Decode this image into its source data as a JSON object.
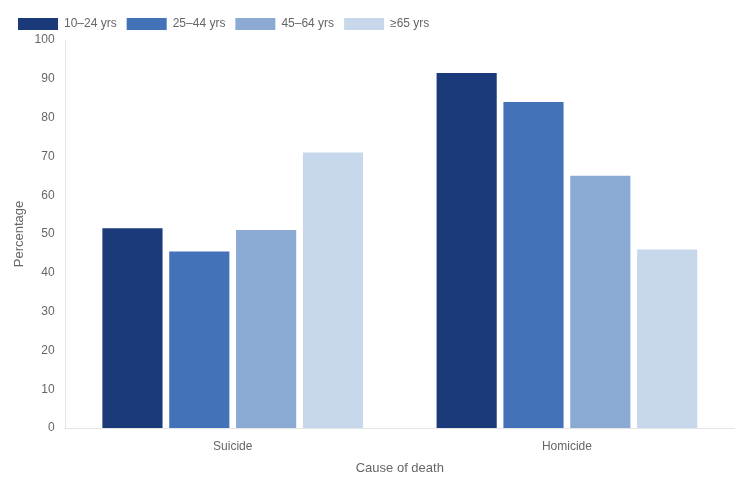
{
  "chart_data": {
    "type": "bar",
    "xlabel": "Cause of death",
    "ylabel": "Percentage",
    "categories": [
      "Suicide",
      "Homicide"
    ],
    "series": [
      {
        "name": "10–24 yrs",
        "color": "#1a3a7a",
        "values": [
          51.5,
          91.5
        ]
      },
      {
        "name": "25–44 yrs",
        "color": "#4472b8",
        "values": [
          45.5,
          84.0
        ]
      },
      {
        "name": "45–64 yrs",
        "color": "#8aaad4",
        "values": [
          51.0,
          65.0
        ]
      },
      {
        "name": "≥65 yrs",
        "color": "#c8d8ec",
        "values": [
          71.0,
          46.0
        ]
      }
    ],
    "ylim": [
      0,
      100
    ],
    "yticks": [
      0,
      10,
      20,
      30,
      40,
      50,
      60,
      70,
      80,
      90,
      100
    ],
    "grid": false,
    "legend": "upper left"
  }
}
